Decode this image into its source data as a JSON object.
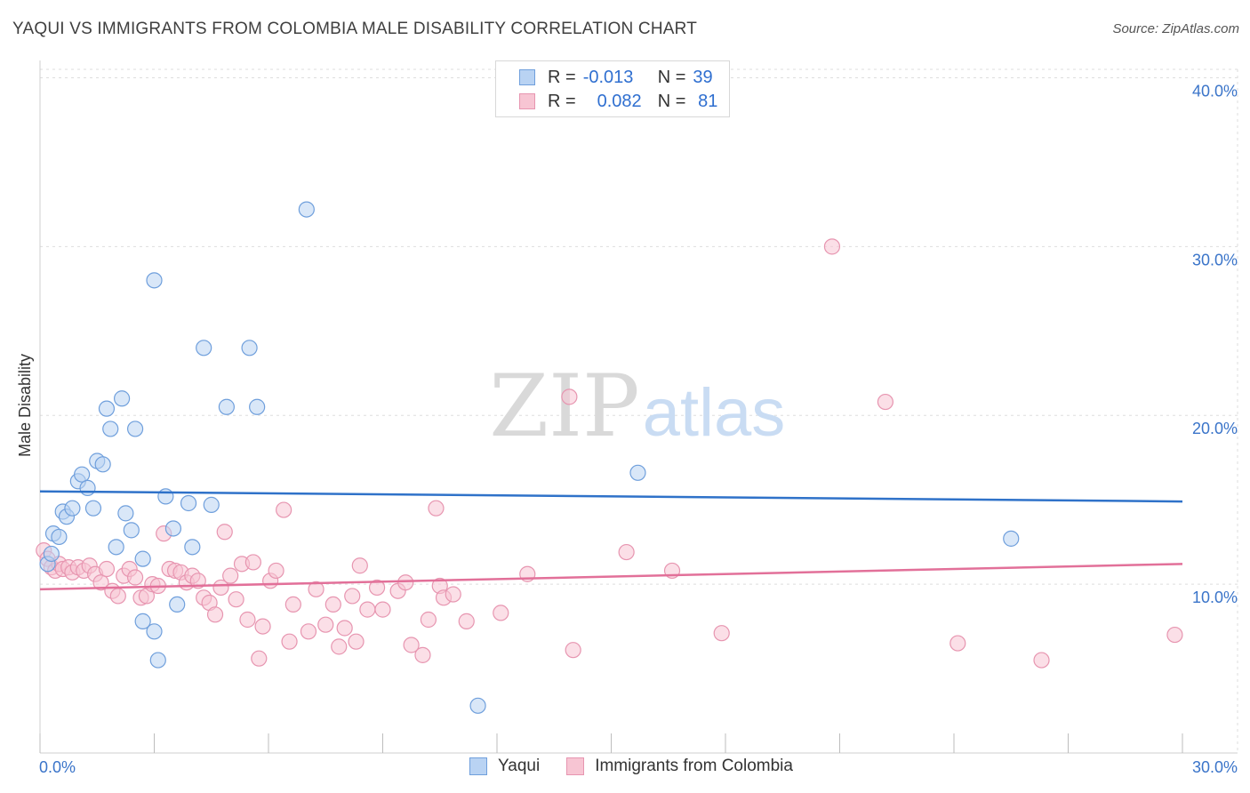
{
  "title": "YAQUI VS IMMIGRANTS FROM COLOMBIA MALE DISABILITY CORRELATION CHART",
  "source": "Source: ZipAtlas.com",
  "watermark": {
    "zip": "ZIP",
    "atlas": "atlas"
  },
  "legend_top": [
    {
      "r_label": "R =",
      "r_value": "-0.013",
      "n_label": "N =",
      "n_value": "39"
    },
    {
      "r_label": "R =",
      "r_value": "0.082",
      "n_label": "N =",
      "n_value": "81"
    }
  ],
  "colors": {
    "yaqui_fill": "#b9d3f3",
    "yaqui_stroke": "#6f9fdc",
    "yaqui_line": "#2f72c9",
    "colombia_fill": "#f7c5d3",
    "colombia_stroke": "#e795b0",
    "colombia_line": "#e27099",
    "axis_text": "#3a74c9",
    "grid": "#dddddd"
  },
  "chart_data": {
    "type": "scatter",
    "title": "YAQUI VS IMMIGRANTS FROM COLOMBIA MALE DISABILITY CORRELATION CHART",
    "xlabel": "",
    "ylabel": "Male Disability",
    "xlim": [
      0,
      30
    ],
    "ylim": [
      0,
      40.5
    ],
    "x_tick_labels": [
      "0.0%",
      "30.0%"
    ],
    "y_ticks": [
      10,
      20,
      30,
      40
    ],
    "y_tick_labels": [
      "10.0%",
      "20.0%",
      "30.0%",
      "40.0%"
    ],
    "series": [
      {
        "name": "Yaqui",
        "r": -0.013,
        "n": 39,
        "trend": {
          "x": [
            0,
            30
          ],
          "y": [
            15.5,
            14.9
          ]
        },
        "points": [
          [
            0.2,
            11.2
          ],
          [
            0.3,
            11.8
          ],
          [
            0.35,
            13.0
          ],
          [
            0.5,
            12.8
          ],
          [
            0.6,
            14.3
          ],
          [
            0.7,
            14.0
          ],
          [
            0.85,
            14.5
          ],
          [
            1.0,
            16.1
          ],
          [
            1.1,
            16.5
          ],
          [
            1.25,
            15.7
          ],
          [
            1.4,
            14.5
          ],
          [
            1.5,
            17.3
          ],
          [
            1.65,
            17.1
          ],
          [
            1.75,
            20.4
          ],
          [
            1.85,
            19.2
          ],
          [
            2.0,
            12.2
          ],
          [
            2.15,
            21.0
          ],
          [
            2.25,
            14.2
          ],
          [
            2.4,
            13.2
          ],
          [
            2.5,
            19.2
          ],
          [
            2.7,
            11.5
          ],
          [
            2.7,
            7.8
          ],
          [
            3.0,
            28.0
          ],
          [
            3.0,
            7.2
          ],
          [
            3.1,
            5.5
          ],
          [
            3.3,
            15.2
          ],
          [
            3.5,
            13.3
          ],
          [
            3.6,
            8.8
          ],
          [
            3.9,
            14.8
          ],
          [
            4.0,
            12.2
          ],
          [
            4.3,
            24.0
          ],
          [
            4.5,
            14.7
          ],
          [
            4.9,
            20.5
          ],
          [
            5.5,
            24.0
          ],
          [
            5.7,
            20.5
          ],
          [
            7.0,
            32.2
          ],
          [
            11.5,
            2.8
          ],
          [
            15.7,
            16.6
          ],
          [
            25.5,
            12.7
          ]
        ]
      },
      {
        "name": "Immigrants from Colombia",
        "r": 0.082,
        "n": 81,
        "trend": {
          "x": [
            0,
            30
          ],
          "y": [
            9.7,
            11.2
          ]
        },
        "points": [
          [
            0.1,
            12.0
          ],
          [
            0.2,
            11.5
          ],
          [
            0.3,
            11.0
          ],
          [
            0.4,
            10.8
          ],
          [
            0.5,
            11.2
          ],
          [
            0.6,
            10.9
          ],
          [
            0.75,
            11.0
          ],
          [
            0.85,
            10.7
          ],
          [
            1.0,
            11.0
          ],
          [
            1.15,
            10.8
          ],
          [
            1.3,
            11.1
          ],
          [
            1.45,
            10.6
          ],
          [
            1.6,
            10.1
          ],
          [
            1.75,
            10.9
          ],
          [
            1.9,
            9.6
          ],
          [
            2.05,
            9.3
          ],
          [
            2.2,
            10.5
          ],
          [
            2.35,
            10.9
          ],
          [
            2.5,
            10.4
          ],
          [
            2.65,
            9.2
          ],
          [
            2.8,
            9.3
          ],
          [
            2.95,
            10.0
          ],
          [
            3.1,
            9.9
          ],
          [
            3.25,
            13.0
          ],
          [
            3.4,
            10.9
          ],
          [
            3.55,
            10.8
          ],
          [
            3.7,
            10.7
          ],
          [
            3.85,
            10.1
          ],
          [
            4.0,
            10.5
          ],
          [
            4.15,
            10.2
          ],
          [
            4.3,
            9.2
          ],
          [
            4.45,
            8.9
          ],
          [
            4.6,
            8.2
          ],
          [
            4.75,
            9.8
          ],
          [
            4.85,
            13.1
          ],
          [
            5.0,
            10.5
          ],
          [
            5.15,
            9.1
          ],
          [
            5.3,
            11.2
          ],
          [
            5.45,
            7.9
          ],
          [
            5.6,
            11.3
          ],
          [
            5.75,
            5.6
          ],
          [
            5.85,
            7.5
          ],
          [
            6.05,
            10.2
          ],
          [
            6.2,
            10.8
          ],
          [
            6.4,
            14.4
          ],
          [
            6.55,
            6.6
          ],
          [
            6.65,
            8.8
          ],
          [
            7.05,
            7.2
          ],
          [
            7.25,
            9.7
          ],
          [
            7.5,
            7.6
          ],
          [
            7.7,
            8.8
          ],
          [
            7.85,
            6.3
          ],
          [
            8.0,
            7.4
          ],
          [
            8.2,
            9.3
          ],
          [
            8.3,
            6.6
          ],
          [
            8.4,
            11.1
          ],
          [
            8.6,
            8.5
          ],
          [
            8.85,
            9.8
          ],
          [
            9.0,
            8.5
          ],
          [
            9.4,
            9.6
          ],
          [
            9.6,
            10.1
          ],
          [
            9.75,
            6.4
          ],
          [
            10.05,
            5.8
          ],
          [
            10.2,
            7.9
          ],
          [
            10.4,
            14.5
          ],
          [
            10.5,
            9.9
          ],
          [
            10.6,
            9.2
          ],
          [
            10.85,
            9.4
          ],
          [
            11.2,
            7.8
          ],
          [
            12.1,
            8.3
          ],
          [
            12.8,
            10.6
          ],
          [
            13.9,
            21.1
          ],
          [
            14.0,
            6.1
          ],
          [
            15.4,
            11.9
          ],
          [
            16.6,
            10.8
          ],
          [
            17.9,
            7.1
          ],
          [
            20.8,
            30.0
          ],
          [
            22.2,
            20.8
          ],
          [
            24.1,
            6.5
          ],
          [
            26.3,
            5.5
          ],
          [
            29.8,
            7.0
          ]
        ]
      }
    ]
  },
  "legend_bottom": [
    {
      "label": "Yaqui"
    },
    {
      "label": "Immigrants from Colombia"
    }
  ]
}
